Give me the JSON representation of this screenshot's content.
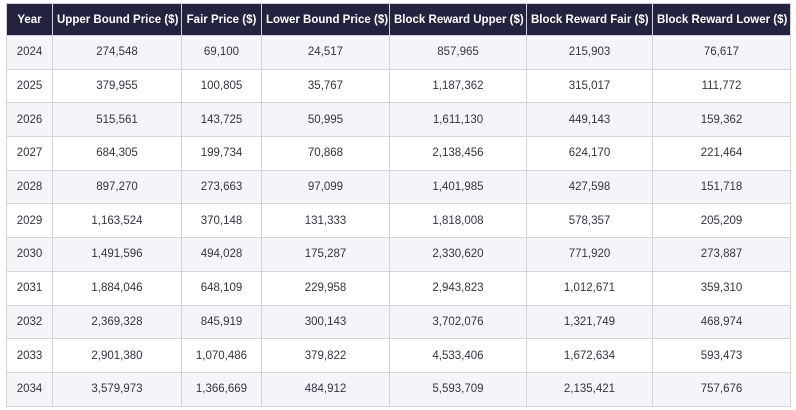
{
  "table": {
    "headers": [
      "Year",
      "Upper Bound Price ($)",
      "Fair Price ($)",
      "Lower Bound Price ($)",
      "Block Reward Upper ($)",
      "Block Reward Fair ($)",
      "Block Reward Lower ($)"
    ],
    "rows": [
      [
        "2024",
        "274,548",
        "69,100",
        "24,517",
        "857,965",
        "215,903",
        "76,617"
      ],
      [
        "2025",
        "379,955",
        "100,805",
        "35,767",
        "1,187,362",
        "315,017",
        "111,772"
      ],
      [
        "2026",
        "515,561",
        "143,725",
        "50,995",
        "1,611,130",
        "449,143",
        "159,362"
      ],
      [
        "2027",
        "684,305",
        "199,734",
        "70,868",
        "2,138,456",
        "624,170",
        "221,464"
      ],
      [
        "2028",
        "897,270",
        "273,663",
        "97,099",
        "1,401,985",
        "427,598",
        "151,718"
      ],
      [
        "2029",
        "1,163,524",
        "370,148",
        "131,333",
        "1,818,008",
        "578,357",
        "205,209"
      ],
      [
        "2030",
        "1,491,596",
        "494,028",
        "175,287",
        "2,330,620",
        "771,920",
        "273,887"
      ],
      [
        "2031",
        "1,884,046",
        "648,109",
        "229,958",
        "2,943,823",
        "1,012,671",
        "359,310"
      ],
      [
        "2032",
        "2,369,328",
        "845,919",
        "300,143",
        "3,702,076",
        "1,321,749",
        "468,974"
      ],
      [
        "2033",
        "2,901,380",
        "1,070,486",
        "379,822",
        "4,533,406",
        "1,672,634",
        "593,473"
      ],
      [
        "2034",
        "3,579,973",
        "1,366,669",
        "484,912",
        "5,593,709",
        "2,135,421",
        "757,676"
      ]
    ]
  },
  "colors": {
    "header_bg": "#23233f",
    "header_text": "#ffffff",
    "row_alt_bg": "#f5f5f9",
    "border": "#d3d3da"
  }
}
